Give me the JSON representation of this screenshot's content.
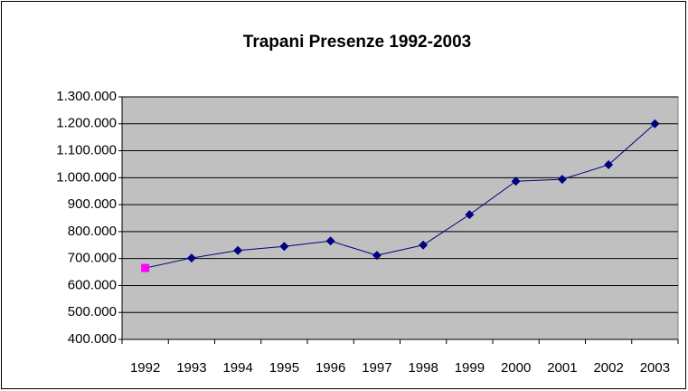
{
  "chart_data": {
    "type": "line",
    "title": "Trapani Presenze 1992-2003",
    "categories": [
      "1992",
      "1993",
      "1994",
      "1995",
      "1996",
      "1997",
      "1998",
      "1999",
      "2000",
      "2001",
      "2002",
      "2003"
    ],
    "series": [
      {
        "color": "#000080",
        "values": [
          665000,
          702000,
          730000,
          745000,
          765000,
          712000,
          750000,
          863000,
          987000,
          994000,
          1048000,
          1200000
        ],
        "marker_colors": [
          "#ff00ff",
          "#000080",
          "#000080",
          "#000080",
          "#000080",
          "#000080",
          "#000080",
          "#000080",
          "#000080",
          "#000080",
          "#000080",
          "#000080"
        ]
      }
    ],
    "ylim": [
      400000,
      1300000
    ],
    "yticks": [
      {
        "value": 400000,
        "label": "400.000"
      },
      {
        "value": 500000,
        "label": "500.000"
      },
      {
        "value": 600000,
        "label": "600.000"
      },
      {
        "value": 700000,
        "label": "700.000"
      },
      {
        "value": 800000,
        "label": "800.000"
      },
      {
        "value": 900000,
        "label": "900.000"
      },
      {
        "value": 1000000,
        "label": "1.000.000"
      },
      {
        "value": 1100000,
        "label": "1.100.000"
      },
      {
        "value": 1200000,
        "label": "1.200.000"
      },
      {
        "value": 1300000,
        "label": "1.300.000"
      }
    ],
    "grid": true,
    "plot_background": "#c0c0c0"
  }
}
